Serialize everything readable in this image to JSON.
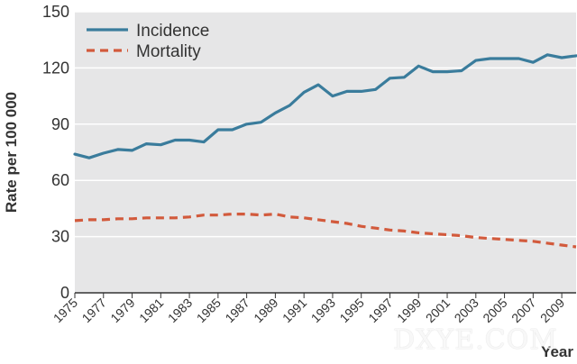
{
  "chart_data": {
    "type": "line",
    "xlabel": "Year",
    "ylabel": "Rate per 100 000",
    "xlim": [
      1975,
      2010
    ],
    "ylim": [
      0,
      150
    ],
    "y_ticks": [
      0,
      30,
      60,
      90,
      120,
      150
    ],
    "x_tick_labels": [
      "1975",
      "1977",
      "1979",
      "1981",
      "1983",
      "1985",
      "1987",
      "1989",
      "1991",
      "1993",
      "1995",
      "1997",
      "1999",
      "2001",
      "2003",
      "2005",
      "2007",
      "2009"
    ],
    "grid": true,
    "legend_position": "top-left",
    "x": [
      1975,
      1976,
      1977,
      1978,
      1979,
      1980,
      1981,
      1982,
      1983,
      1984,
      1985,
      1986,
      1987,
      1988,
      1989,
      1990,
      1991,
      1992,
      1993,
      1994,
      1995,
      1996,
      1997,
      1998,
      1999,
      2000,
      2001,
      2002,
      2003,
      2004,
      2005,
      2006,
      2007,
      2008,
      2009,
      2010
    ],
    "series": [
      {
        "name": "Incidence",
        "style": "solid",
        "color": "#3a7c9c",
        "values": [
          74,
          72,
          74.5,
          76.5,
          76,
          79.5,
          79,
          81.5,
          81.5,
          80.5,
          87,
          87,
          90,
          91,
          96,
          100,
          107,
          111,
          105,
          107.5,
          107.5,
          108.5,
          114.5,
          115,
          121,
          118,
          118,
          118.5,
          124,
          125,
          125,
          125,
          123,
          127,
          125.5,
          126.5
        ]
      },
      {
        "name": "Mortality",
        "style": "dashed",
        "color": "#d25a3c",
        "values": [
          38.5,
          39,
          39,
          39.5,
          39.5,
          40,
          40,
          40,
          40.5,
          41.5,
          41.5,
          42,
          42,
          41.5,
          42,
          40.5,
          40,
          39,
          38,
          37,
          35.5,
          34.5,
          33.5,
          33,
          32,
          31.5,
          31,
          30.5,
          29.5,
          29,
          28.5,
          28,
          27.5,
          26.5,
          25.5,
          24.5
        ]
      }
    ]
  },
  "watermark": "DXYE.COM"
}
